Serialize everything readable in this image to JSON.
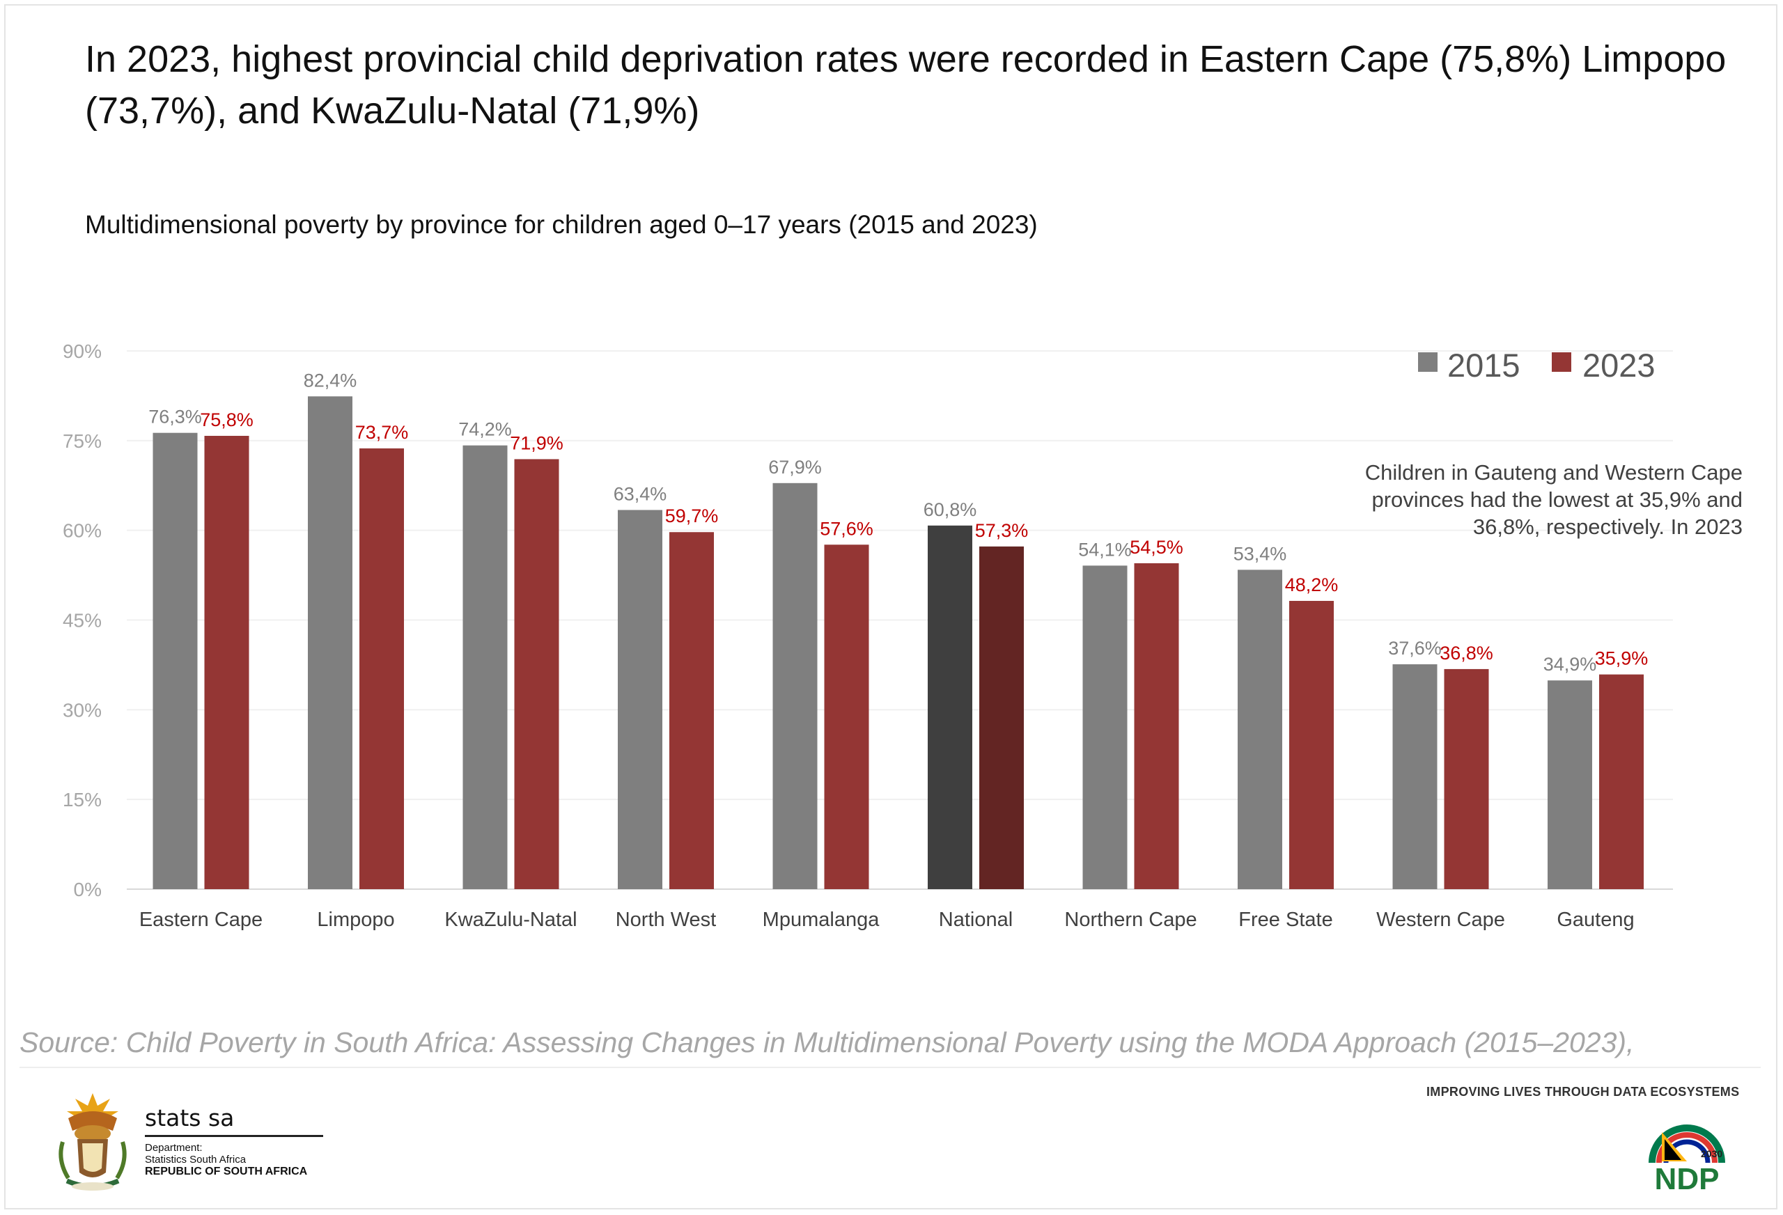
{
  "headline": "In 2023, highest provincial child deprivation rates were recorded in Eastern Cape (75,8%) Limpopo (73,7%), and KwaZulu-Natal (71,9%)",
  "subtitle": "Multidimensional poverty by province for children aged 0–17 years (2015 and 2023)",
  "annotation": [
    "Children in Gauteng and Western Cape",
    "provinces had the lowest at 35,9% and",
    "36,8%,  respectively. In 2023"
  ],
  "source": "Source: Child Poverty in South Africa: Assessing Changes in Multidimensional Poverty using the MODA Approach (2015–2023),",
  "footer": {
    "tagline": "IMPROVING LIVES THROUGH DATA ECOSYSTEMS",
    "org_name": "stats sa",
    "dept_line1": "Department:",
    "dept_line2": "Statistics South Africa",
    "dept_line3": "REPUBLIC OF SOUTH AFRICA",
    "ndp_year": "2030",
    "ndp_text": "NDP"
  },
  "chart_data": {
    "type": "bar",
    "title": "Multidimensional poverty by province for children aged 0–17 years (2015 and 2023)",
    "categories": [
      "Eastern Cape",
      "Limpopo",
      "KwaZulu-Natal",
      "North West",
      "Mpumalanga",
      "National",
      "Northern Cape",
      "Free State",
      "Western Cape",
      "Gauteng"
    ],
    "series": [
      {
        "name": "2015",
        "values": [
          76.3,
          82.4,
          74.2,
          63.4,
          67.9,
          60.8,
          54.1,
          53.4,
          37.6,
          34.9
        ],
        "labels": [
          "76,3%",
          "82,4%",
          "74,2%",
          "63,4%",
          "67,9%",
          "60,8%",
          "54,1%",
          "53,4%",
          "37,6%",
          "34,9%"
        ],
        "color": "#7f7f7f",
        "highlight_color": "#3f3f3f",
        "label_color": "#7f7f7f"
      },
      {
        "name": "2023",
        "values": [
          75.8,
          73.7,
          71.9,
          59.7,
          57.6,
          57.3,
          54.5,
          48.2,
          36.8,
          35.9
        ],
        "labels": [
          "75,8%",
          "73,7%",
          "71,9%",
          "59,7%",
          "57,6%",
          "57,3%",
          "54,5%",
          "48,2%",
          "36,8%",
          "35,9%"
        ],
        "color": "#943634",
        "highlight_color": "#632523",
        "label_color": "#c00000"
      }
    ],
    "highlight_category": "National",
    "yticks": [
      "0%",
      "15%",
      "30%",
      "45%",
      "60%",
      "75%",
      "90%"
    ],
    "ytick_values": [
      0,
      15,
      30,
      45,
      60,
      75,
      90
    ],
    "ylim": [
      0,
      90
    ],
    "grid": true,
    "legend_position": "top-right"
  }
}
